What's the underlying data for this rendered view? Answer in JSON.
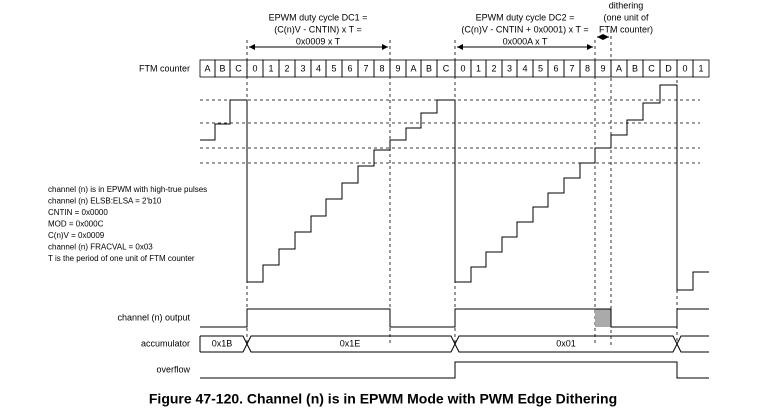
{
  "annotations": {
    "dc1": [
      "EPWM duty cycle DC1 =",
      "(C(n)V - CNTIN) x T =",
      "0x0009 x T"
    ],
    "dc2": [
      "EPWM duty cycle DC2 =",
      "(C(n)V - CNTIN + 0x0001) x T =",
      "0x000A x T"
    ],
    "dithering": [
      "dithering",
      "(one unit of",
      "FTM counter)"
    ]
  },
  "signals": {
    "ftm_counter": "FTM counter",
    "counter_cells": [
      "A",
      "B",
      "C",
      "0",
      "1",
      "2",
      "3",
      "4",
      "5",
      "6",
      "7",
      "8",
      "9",
      "A",
      "B",
      "C",
      "0",
      "1",
      "2",
      "3",
      "4",
      "5",
      "6",
      "7",
      "8",
      "9",
      "A",
      "B",
      "C",
      "D",
      "0",
      "1"
    ],
    "channel_output": "channel (n) output",
    "accumulator": "accumulator",
    "accumulator_values": [
      "0x1B",
      "0x1E",
      "0x01"
    ],
    "overflow": "overflow"
  },
  "notes": [
    "channel (n) is in EPWM with high-true pulses",
    "channel (n) ELSB:ELSA = 2'b10",
    "CNTIN = 0x0000",
    "MOD = 0x000C",
    "C(n)V = 0x0009",
    "channel (n) FRACVAL = 0x03",
    "T is the period of one unit of FTM counter"
  ],
  "caption": "Figure 47-120. Channel (n) is in EPWM Mode with PWM Edge Dithering"
}
